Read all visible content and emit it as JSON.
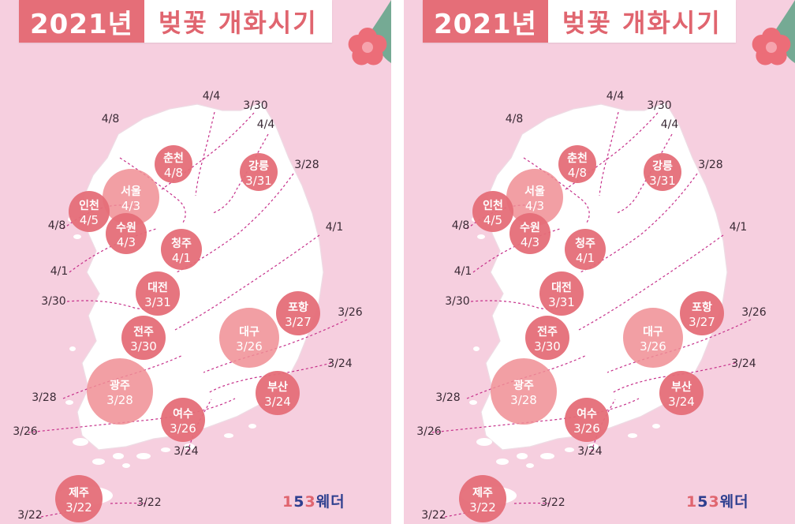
{
  "title_year": "2021년",
  "title_text": "벚꽃 개화시기",
  "brand": {
    "d1": "1",
    "d2": "5",
    "d3": "3",
    "rest": "웨더"
  },
  "colors": {
    "background": "#f6cfdf",
    "land": "#ffffff",
    "bubble": "#e56e78",
    "bubble_light": "#f08e94",
    "isoline": "#c6308a",
    "title_bg": "#e56e78"
  },
  "cities": [
    {
      "name": "춘천",
      "date": "4/8"
    },
    {
      "name": "강릉",
      "date": "3/31"
    },
    {
      "name": "서울",
      "date": "4/3"
    },
    {
      "name": "인천",
      "date": "4/5"
    },
    {
      "name": "수원",
      "date": "4/3"
    },
    {
      "name": "청주",
      "date": "4/1"
    },
    {
      "name": "대전",
      "date": "3/31"
    },
    {
      "name": "포항",
      "date": "3/27"
    },
    {
      "name": "대구",
      "date": "3/26"
    },
    {
      "name": "전주",
      "date": "3/30"
    },
    {
      "name": "광주",
      "date": "3/28"
    },
    {
      "name": "부산",
      "date": "3/24"
    },
    {
      "name": "여수",
      "date": "3/26"
    },
    {
      "name": "제주",
      "date": "3/22"
    }
  ],
  "isoline_labels": [
    "4/8",
    "4/4",
    "4/8",
    "4/1",
    "3/30",
    "4/4",
    "3/28",
    "4/1",
    "3/30",
    "3/26",
    "3/24",
    "3/28",
    "3/26",
    "3/24",
    "3/22",
    "3/22"
  ]
}
